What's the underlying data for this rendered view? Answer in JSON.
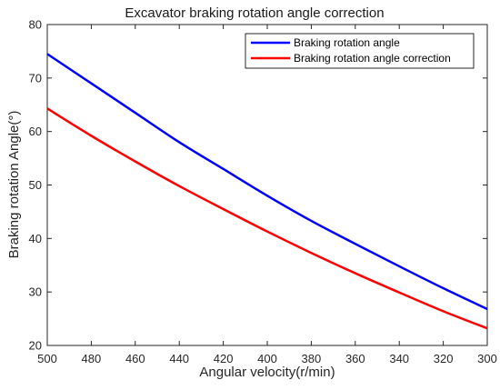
{
  "chart_data": {
    "type": "line",
    "title": "Excavator braking rotation angle correction",
    "xlabel": "Angular velocity(r/min)",
    "ylabel": "Braking rotation Angle(°)",
    "xlim": [
      500,
      300
    ],
    "x_reversed": true,
    "ylim": [
      20,
      80
    ],
    "xticks": [
      500,
      480,
      460,
      440,
      420,
      400,
      380,
      360,
      340,
      320,
      300
    ],
    "yticks": [
      20,
      30,
      40,
      50,
      60,
      70,
      80
    ],
    "grid": false,
    "legend_position": "top-right",
    "series": [
      {
        "name": "Braking rotation angle",
        "color": "#0000ff",
        "x": [
          500,
          480,
          460,
          440,
          420,
          400,
          380,
          360,
          340,
          320,
          300
        ],
        "y": [
          74.5,
          69.0,
          63.5,
          58.0,
          53.0,
          48.0,
          43.3,
          39.0,
          34.8,
          30.7,
          26.8
        ]
      },
      {
        "name": "Braking rotation angle correction",
        "color": "#ff0000",
        "x": [
          500,
          480,
          460,
          440,
          420,
          400,
          380,
          360,
          340,
          320,
          300
        ],
        "y": [
          64.3,
          59.2,
          54.4,
          49.8,
          45.5,
          41.3,
          37.3,
          33.5,
          29.9,
          26.4,
          23.2
        ]
      }
    ]
  }
}
